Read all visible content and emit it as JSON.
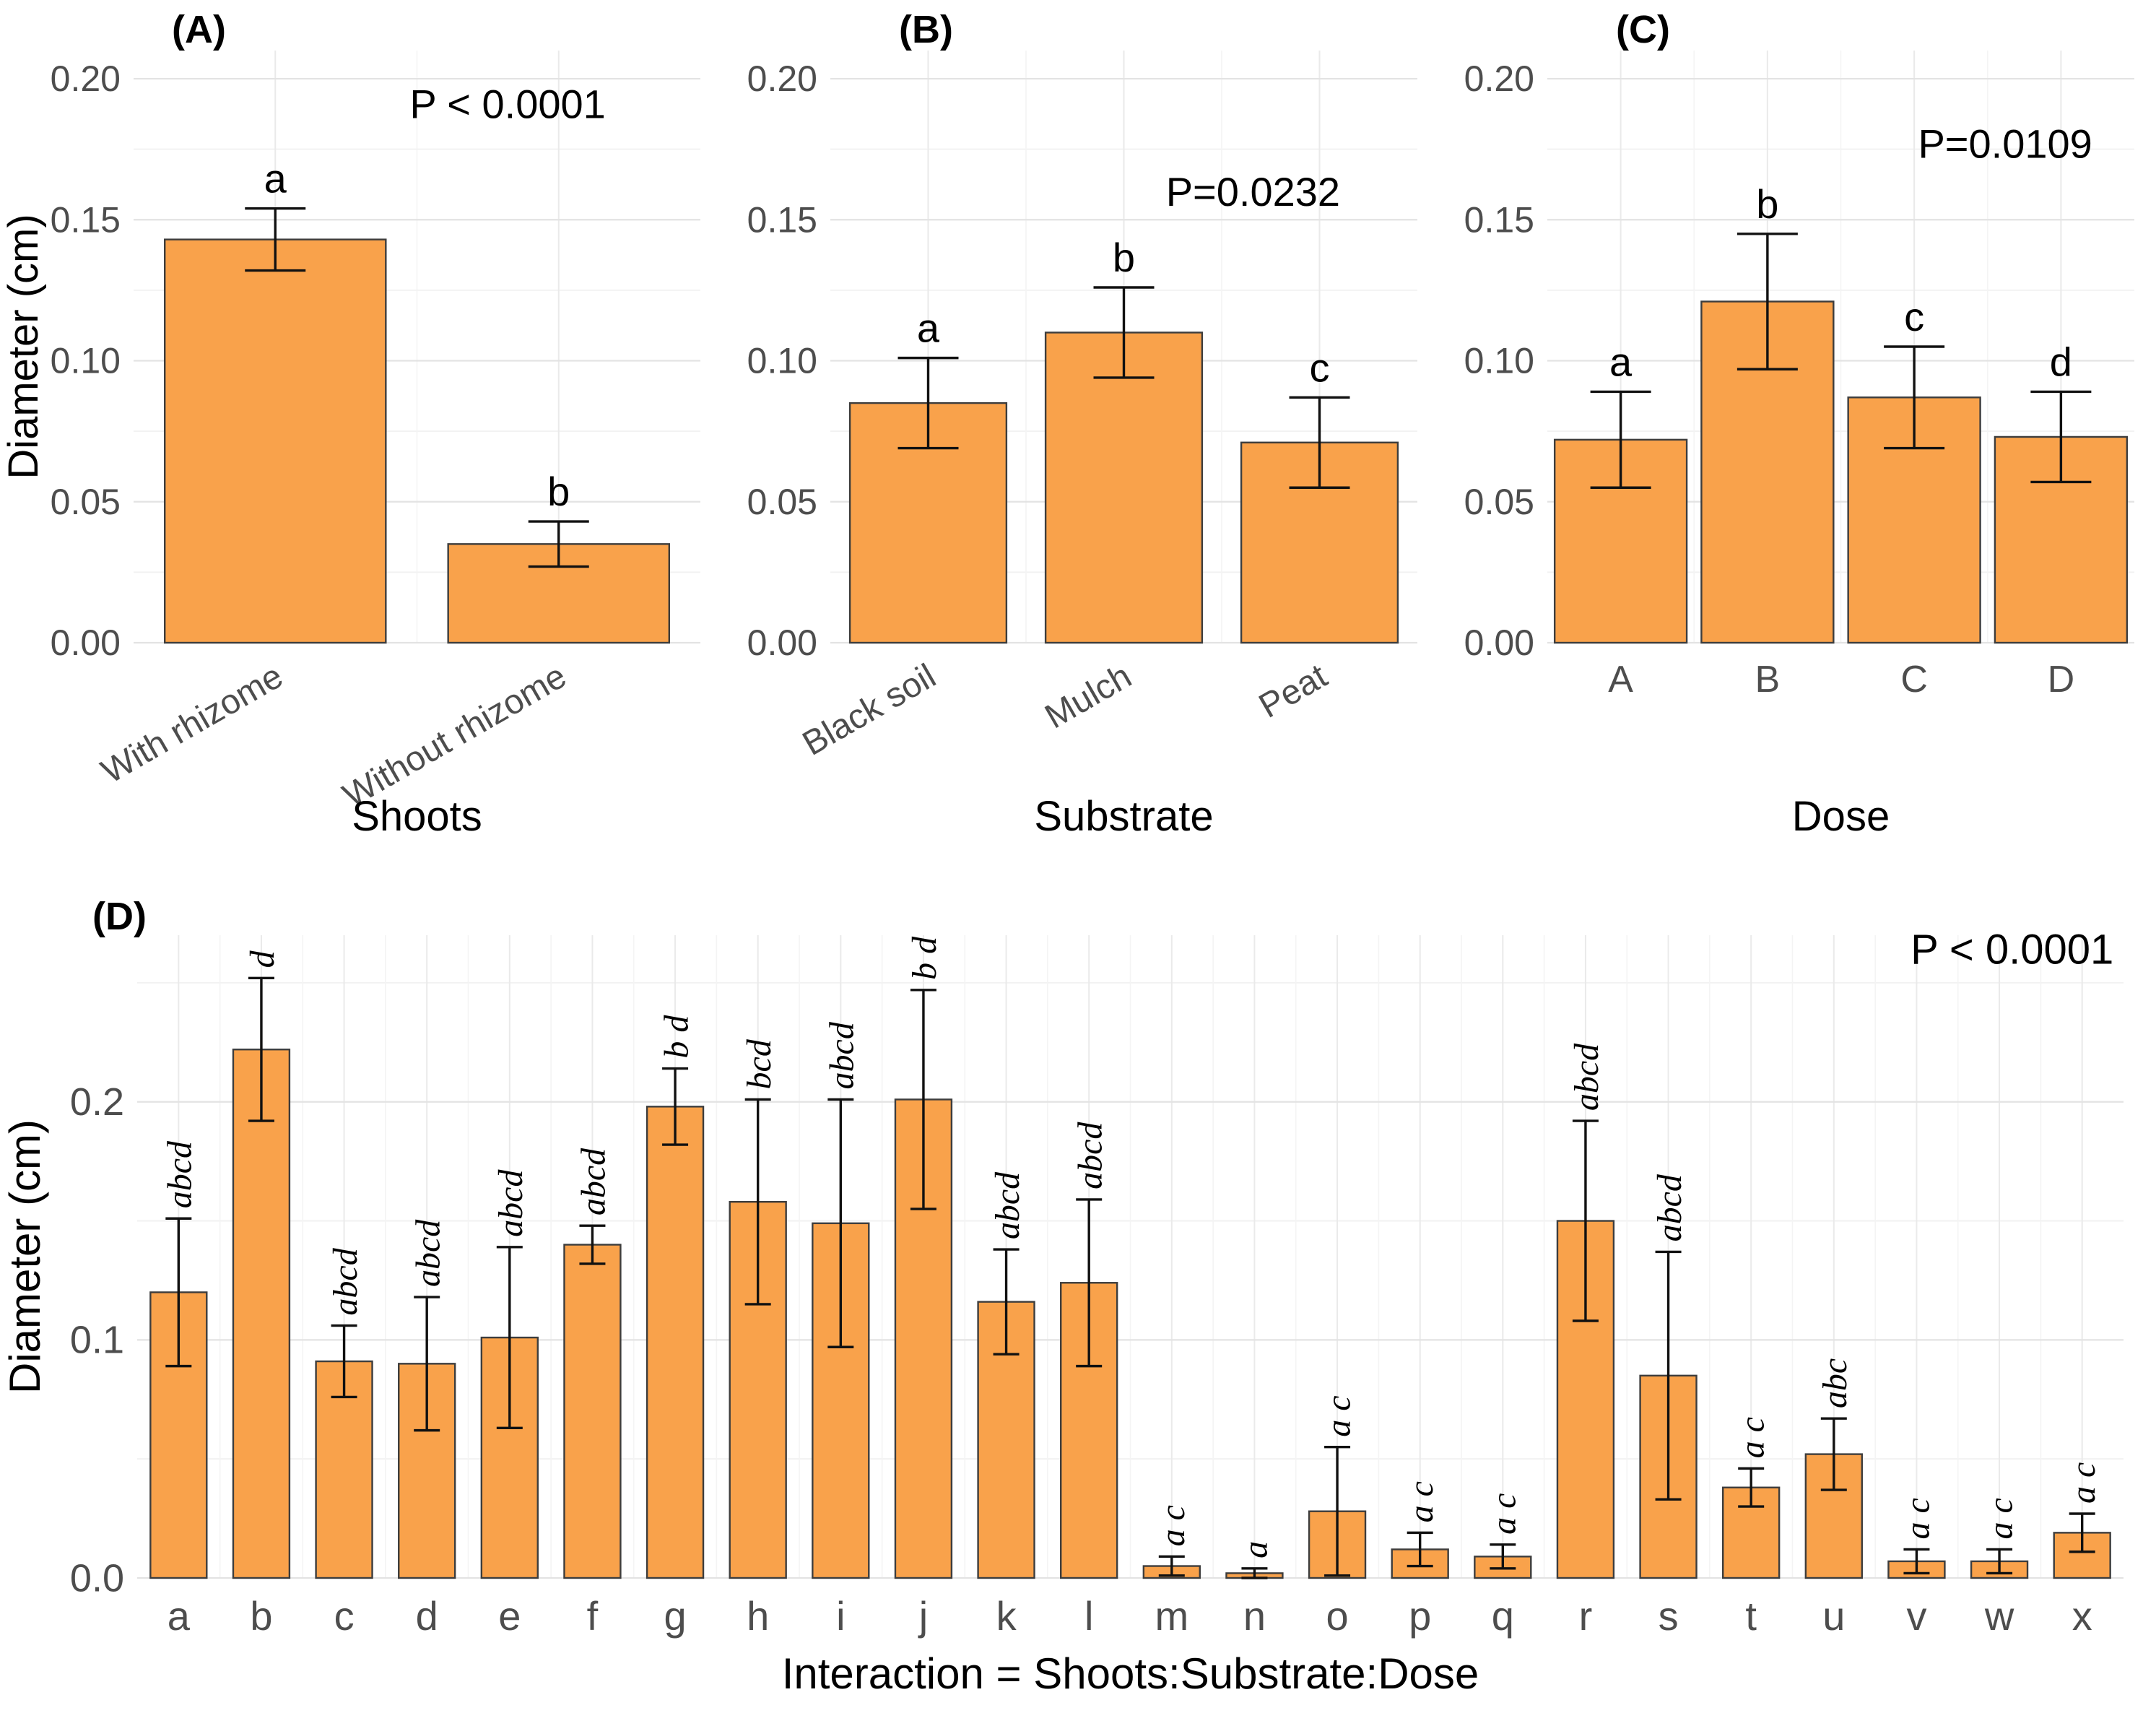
{
  "chart_data": [
    {
      "type": "bar",
      "tag": "(A)",
      "p_label": "P < 0.0001",
      "title": "",
      "xlabel": "Shoots",
      "ylabel": "Diameter (cm)",
      "categories": [
        "With rhizome",
        "Without rhizome"
      ],
      "values": [
        0.143,
        0.035
      ],
      "errors": [
        0.011,
        0.008
      ],
      "sig_labels": [
        "a",
        "b"
      ],
      "yticks": [
        0,
        0.05,
        0.1,
        0.15,
        0.2
      ],
      "ytick_labels": [
        "0.00",
        "0.05",
        "0.10",
        "0.15",
        "0.20"
      ],
      "ylim": [
        0,
        0.21
      ],
      "bar_color": "#F9A24B",
      "grid": true,
      "legend": "none"
    },
    {
      "type": "bar",
      "tag": "(B)",
      "p_label": "P=0.0232",
      "title": "",
      "xlabel": "Substrate",
      "ylabel": "",
      "categories": [
        "Black soil",
        "Mulch",
        "Peat"
      ],
      "values": [
        0.085,
        0.11,
        0.071
      ],
      "errors": [
        0.016,
        0.016,
        0.016
      ],
      "sig_labels": [
        "a",
        "b",
        "c"
      ],
      "yticks": [
        0,
        0.05,
        0.1,
        0.15,
        0.2
      ],
      "ytick_labels": [
        "0.00",
        "0.05",
        "0.10",
        "0.15",
        "0.20"
      ],
      "ylim": [
        0,
        0.21
      ],
      "bar_color": "#F9A24B",
      "grid": true,
      "legend": "none"
    },
    {
      "type": "bar",
      "tag": "(C)",
      "p_label": "P=0.0109",
      "title": "",
      "xlabel": "Dose",
      "ylabel": "",
      "categories": [
        "A",
        "B",
        "C",
        "D"
      ],
      "values": [
        0.072,
        0.121,
        0.087,
        0.073
      ],
      "errors": [
        0.017,
        0.024,
        0.018,
        0.016
      ],
      "sig_labels": [
        "a",
        "b",
        "c",
        "d"
      ],
      "yticks": [
        0,
        0.05,
        0.1,
        0.15,
        0.2
      ],
      "ytick_labels": [
        "0.00",
        "0.05",
        "0.10",
        "0.15",
        "0.20"
      ],
      "ylim": [
        0,
        0.21
      ],
      "bar_color": "#F9A24B",
      "grid": true,
      "legend": "none"
    },
    {
      "type": "bar",
      "tag": "(D)",
      "p_label": "P < 0.0001",
      "title": "",
      "xlabel": "Interaction = Shoots:Substrate:Dose",
      "ylabel": "Diameter (cm)",
      "categories": [
        "a",
        "b",
        "c",
        "d",
        "e",
        "f",
        "g",
        "h",
        "i",
        "j",
        "k",
        "l",
        "m",
        "n",
        "o",
        "p",
        "q",
        "r",
        "s",
        "t",
        "u",
        "v",
        "w",
        "x"
      ],
      "values": [
        0.12,
        0.222,
        0.091,
        0.09,
        0.101,
        0.14,
        0.198,
        0.158,
        0.149,
        0.201,
        0.116,
        0.124,
        0.005,
        0.002,
        0.028,
        0.012,
        0.009,
        0.15,
        0.085,
        0.038,
        0.052,
        0.007,
        0.007,
        0.019
      ],
      "errors": [
        0.031,
        0.03,
        0.015,
        0.028,
        0.038,
        0.008,
        0.016,
        0.043,
        0.052,
        0.046,
        0.022,
        0.035,
        0.004,
        0.002,
        0.027,
        0.007,
        0.005,
        0.042,
        0.052,
        0.008,
        0.015,
        0.005,
        0.005,
        0.008
      ],
      "sig_labels": [
        "abcd",
        "d",
        "abcd",
        "abcd",
        "abcd",
        "abcd",
        "b d",
        "bcd",
        "abcd",
        "b d",
        "abcd",
        "abcd",
        "a c",
        "a",
        "a c",
        "a c",
        "a c",
        "abcd",
        "abcd",
        "a c",
        "abc",
        "a c",
        "a c",
        "a c"
      ],
      "yticks": [
        0,
        0.1,
        0.2
      ],
      "ytick_labels": [
        "0.0",
        "0.1",
        "0.2"
      ],
      "ylim": [
        0,
        0.27
      ],
      "bar_color": "#F9A24B",
      "grid": true,
      "legend": "none"
    }
  ]
}
